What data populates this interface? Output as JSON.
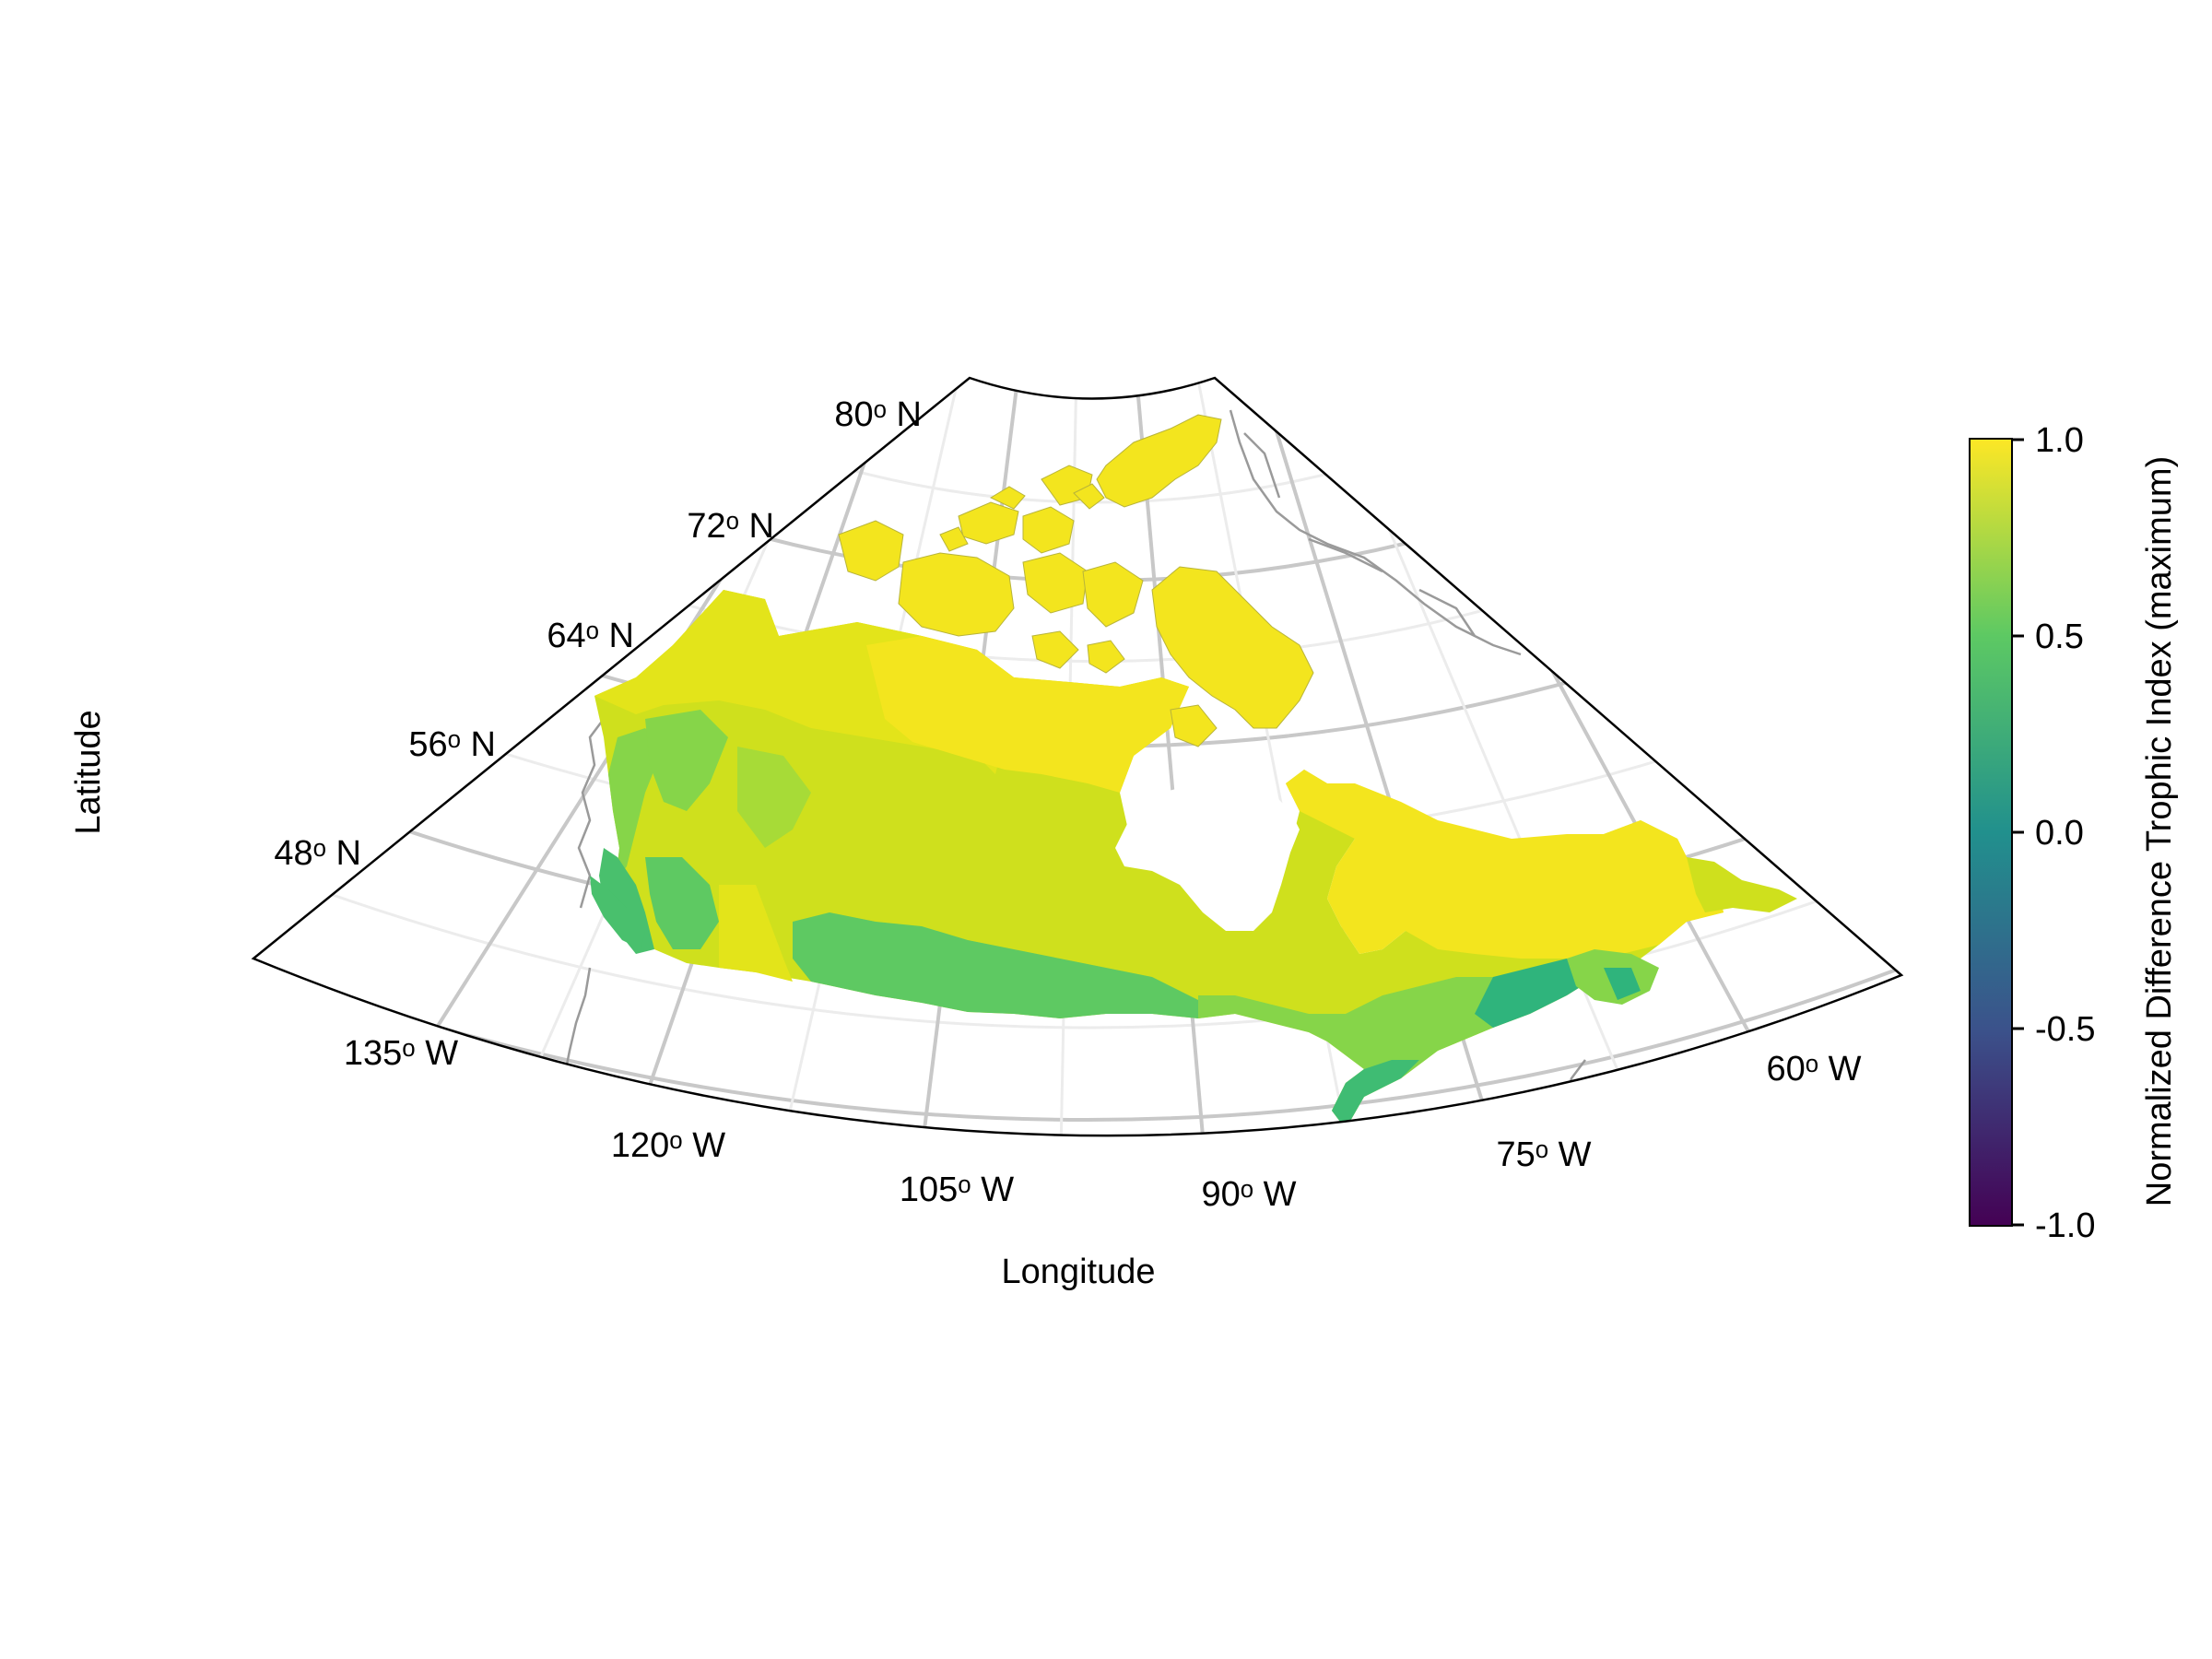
{
  "chart_data": {
    "type": "heatmap",
    "subject": "Canada",
    "projection": "conic",
    "xlabel": "Longitude",
    "ylabel": "Latitude",
    "lat_ticks": [
      "48ᵒ N",
      "56ᵒ N",
      "64ᵒ N",
      "72ᵒ N",
      "80ᵒ N"
    ],
    "lon_ticks": [
      "135ᵒ W",
      "120ᵒ W",
      "105ᵒ W",
      "90ᵒ W",
      "75ᵒ W",
      "60ᵒ W"
    ],
    "grid": true,
    "colorbar": {
      "label": "Normalized Difference Trophic Index (maximum)",
      "colormap": "viridis",
      "range": [
        -1.0,
        1.0
      ],
      "ticks": [
        "1.0",
        "0.5",
        "0.0",
        "-0.5",
        "-1.0"
      ],
      "stops": [
        "#440154",
        "#3b528b",
        "#21908d",
        "#5dc963",
        "#fde725"
      ]
    },
    "legend_position": "right",
    "value_colors": {
      "arctic": "#f3e51e",
      "boreal": "#cfe01d",
      "prairie_south": "#e3e41a",
      "temperate": "#5ec962",
      "coastal": "#49c06d",
      "east": "#86d549",
      "maritime": "#2fb47c"
    }
  }
}
